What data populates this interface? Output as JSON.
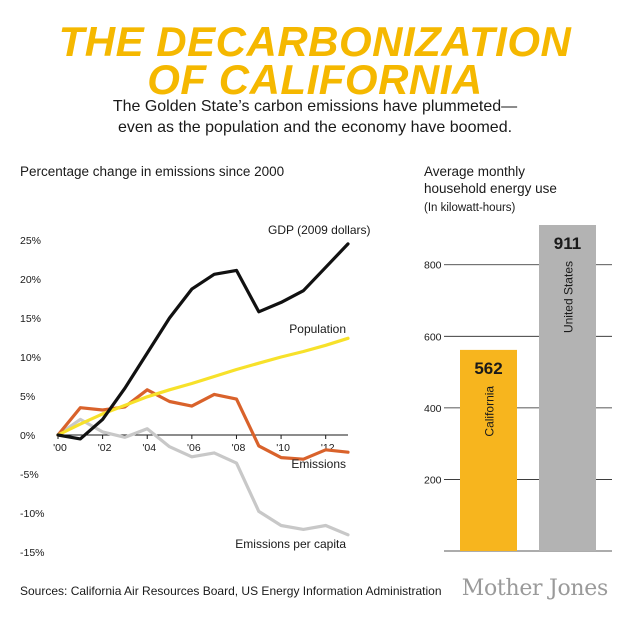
{
  "title": {
    "line1": "THE DECARBONIZATION",
    "line2": "OF CALIFORNIA"
  },
  "subtitle": {
    "line1": "The Golden State’s carbon emissions have plummeted—",
    "line2": "even as the population and the economy have boomed."
  },
  "left_title": "Percentage change in emissions since 2000",
  "right_title": {
    "line1": "Average monthly",
    "line2": "household energy use",
    "line3": "(In kilowatt-hours)"
  },
  "source": "Sources: California Air Resources Board, US Energy Information Administration",
  "brand": "Mother Jones",
  "colors": {
    "gdp": "#111111",
    "population": "#f7e12a",
    "emissions": "#d9622b",
    "per_capita": "#c8c8c8",
    "california": "#f7b51e",
    "us": "#b3b3b3",
    "title": "#f5b800"
  },
  "chart_data": [
    {
      "type": "line",
      "title": "Percentage change in emissions since 2000",
      "x": [
        2000,
        2001,
        2002,
        2003,
        2004,
        2005,
        2006,
        2007,
        2008,
        2009,
        2010,
        2011,
        2012,
        2013
      ],
      "x_tick_values": [
        2000,
        2002,
        2004,
        2006,
        2008,
        2010,
        2012
      ],
      "x_tick_labels": [
        "'00",
        "'02",
        "'04",
        "'06",
        "'08",
        "'10",
        "'12"
      ],
      "y_tick_values": [
        25,
        20,
        15,
        10,
        5,
        0,
        -5,
        -10,
        -15
      ],
      "y_tick_labels": [
        "25%",
        "20%",
        "15%",
        "10%",
        "5%",
        "0%",
        "-5%",
        "-10%",
        "-15%"
      ],
      "ylim": [
        -15,
        26
      ],
      "grid": false,
      "series": [
        {
          "name": "GDP (2009 dollars)",
          "key": "gdp",
          "values": [
            0,
            -0.5,
            2,
            6,
            10.5,
            15,
            18.7,
            20.6,
            21.1,
            15.8,
            17,
            18.5,
            21.5,
            24.5
          ]
        },
        {
          "name": "Population",
          "key": "population",
          "values": [
            0,
            1.4,
            2.7,
            3.8,
            4.9,
            5.8,
            6.6,
            7.5,
            8.4,
            9.2,
            10,
            10.7,
            11.5,
            12.4
          ]
        },
        {
          "name": "Emissions",
          "key": "emissions",
          "values": [
            0,
            3.5,
            3.2,
            3.6,
            5.8,
            4.3,
            3.7,
            5.2,
            4.6,
            -1.4,
            -2.9,
            -3.1,
            -1.9,
            -2.2
          ]
        },
        {
          "name": "Emissions per capita",
          "key": "per_capita",
          "values": [
            0,
            2,
            0.4,
            -0.3,
            0.8,
            -1.5,
            -2.8,
            -2.3,
            -3.6,
            -9.8,
            -11.6,
            -12.1,
            -11.6,
            -12.8
          ]
        }
      ]
    },
    {
      "type": "bar",
      "title": "Average monthly household energy use",
      "ylabel": "(In kilowatt-hours)",
      "categories": [
        "California",
        "United States"
      ],
      "values": [
        562,
        911
      ],
      "value_labels": [
        "562",
        "911"
      ],
      "y_tick_values": [
        800,
        600,
        400,
        200
      ],
      "y_tick_labels": [
        "800",
        "600",
        "400",
        "200"
      ],
      "ylim": [
        0,
        911
      ],
      "grid": true
    }
  ]
}
